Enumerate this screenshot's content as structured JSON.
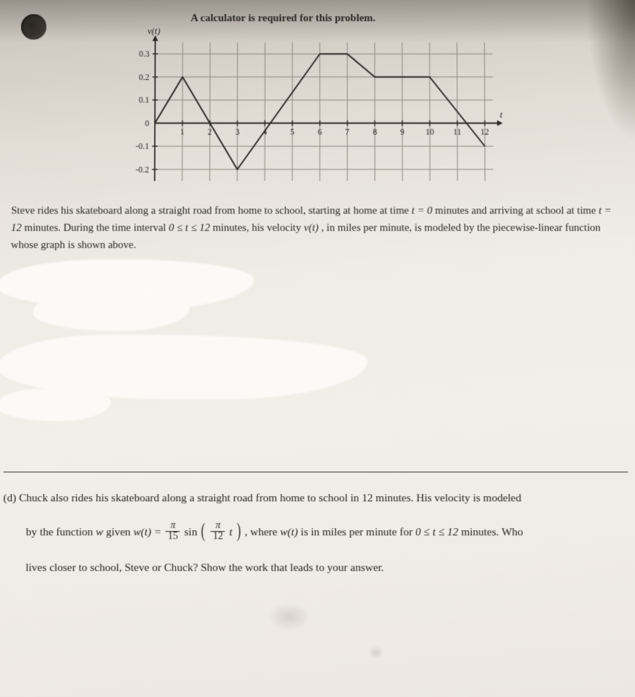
{
  "heading": "A calculator is required for this problem.",
  "chart": {
    "type": "line",
    "y_axis_label": "v(t)",
    "x_axis_label": "t",
    "xlim": [
      0,
      12.5
    ],
    "ylim": [
      -0.25,
      0.35
    ],
    "x_ticks": [
      1,
      2,
      3,
      4,
      5,
      6,
      7,
      8,
      9,
      10,
      11,
      12
    ],
    "y_ticks_pos": [
      0.1,
      0.2,
      0.3
    ],
    "y_ticks_neg": [
      -0.1,
      -0.2
    ],
    "y_tick_labels_pos": [
      "0.1",
      "0.2",
      "0.3"
    ],
    "y_tick_labels_neg": [
      "-0.1",
      "-0.2"
    ],
    "zero_label": "0",
    "grid_color": "#8a867c",
    "axis_color": "#2a2824",
    "line_color": "#2a2824",
    "background": "transparent",
    "line_width": 2,
    "tick_fontsize": 12,
    "label_fontsize": 13,
    "points": [
      [
        0,
        0
      ],
      [
        1,
        0.2
      ],
      [
        3,
        -0.2
      ],
      [
        6,
        0.3
      ],
      [
        7,
        0.3
      ],
      [
        8,
        0.2
      ],
      [
        10,
        0.2
      ],
      [
        12,
        -0.1
      ]
    ]
  },
  "para1_a": "Steve rides his skateboard along a straight road from home to school, starting at home at time ",
  "para1_t0": "t = 0",
  "para1_b": " minutes and arriving at school at time ",
  "para1_t12": "t = 12",
  "para1_c": " minutes.  During the time interval ",
  "para1_int": "0 ≤ t ≤ 12",
  "para1_d": " minutes, his velocity ",
  "para1_vt": "v(t)",
  "para1_e": ", in miles per minute, is modeled by the piecewise-linear function whose graph is shown above.",
  "partd": {
    "label": "(d)  ",
    "l1a": "Chuck also rides his skateboard along a straight road from home to school in 12 minutes.  His velocity is modeled",
    "l2a": "by the function ",
    "l2w": "w",
    "l2b": " given ",
    "l2wt": "w(t) = ",
    "frac1_num": "π",
    "frac1_den": "15",
    "l2sin": " sin",
    "frac2_num": "π",
    "frac2_den": "12",
    "l2t": " t",
    "l2c": ",  where ",
    "l2wt2": "w(t)",
    "l2d": " is in miles per minute for ",
    "l2int": "0 ≤ t ≤ 12",
    "l2e": " minutes.  Who",
    "l3": "lives closer to school, Steve or Chuck?  Show the work that leads to your answer."
  }
}
